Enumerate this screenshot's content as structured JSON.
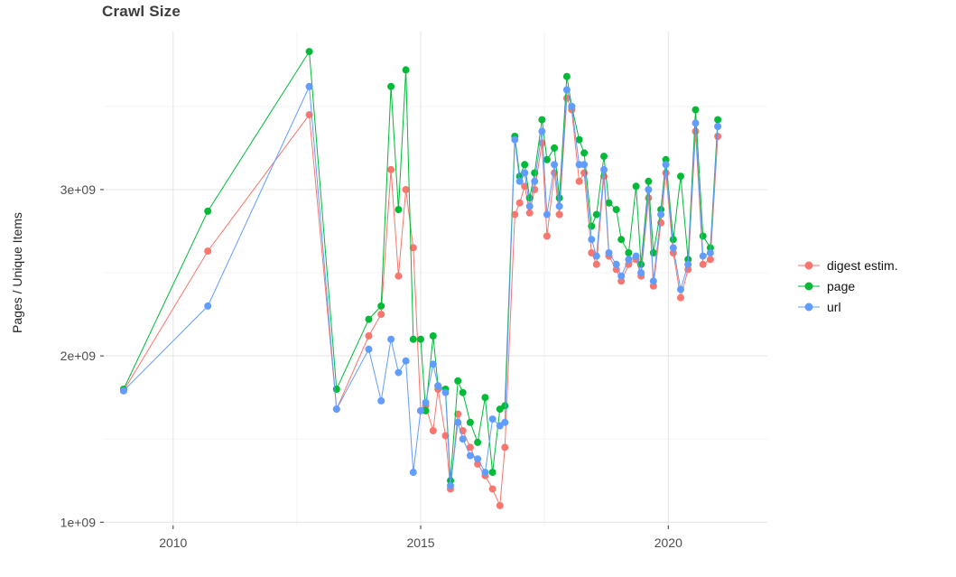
{
  "chart_data": {
    "type": "line",
    "title": "Crawl Size",
    "xlabel": "",
    "ylabel": "Pages / Unique Items",
    "legend_position": "right",
    "grid": true,
    "values_unit": "pages (values given in billions, i.e. 1e9)",
    "xlim": [
      2008.6,
      2022.0
    ],
    "ylim": [
      0.98,
      3.95
    ],
    "x_ticks": [
      2010,
      2015,
      2020
    ],
    "x_tick_labels": [
      "2010",
      "2015",
      "2020"
    ],
    "y_tick_values": [
      1,
      2,
      3
    ],
    "y_ticks": [
      "1e+09",
      "2e+09",
      "3e+09"
    ],
    "minor_x": [
      2012.5,
      2017.5
    ],
    "minor_y": [
      1.5,
      2.5,
      3.5
    ],
    "x": [
      2009.0,
      2010.7,
      2012.75,
      2013.3,
      2013.95,
      2014.2,
      2014.4,
      2014.55,
      2014.7,
      2014.85,
      2015.0,
      2015.1,
      2015.25,
      2015.35,
      2015.5,
      2015.6,
      2015.75,
      2015.85,
      2016.0,
      2016.15,
      2016.3,
      2016.45,
      2016.6,
      2016.7,
      2016.9,
      2017.0,
      2017.1,
      2017.2,
      2017.3,
      2017.45,
      2017.55,
      2017.7,
      2017.8,
      2017.95,
      2018.05,
      2018.2,
      2018.3,
      2018.45,
      2018.55,
      2018.7,
      2018.8,
      2018.95,
      2019.05,
      2019.2,
      2019.35,
      2019.45,
      2019.6,
      2019.7,
      2019.85,
      2019.95,
      2020.1,
      2020.25,
      2020.4,
      2020.55,
      2020.7,
      2020.85,
      2021.0
    ],
    "series": [
      {
        "name": "digest estim.",
        "color": "#F8766D",
        "values": [
          1.79,
          2.63,
          3.45,
          1.68,
          2.12,
          2.25,
          3.12,
          2.48,
          3.0,
          2.65,
          1.67,
          1.7,
          1.55,
          1.8,
          1.52,
          1.2,
          1.65,
          1.55,
          1.45,
          1.35,
          1.28,
          1.2,
          1.1,
          1.45,
          2.85,
          2.92,
          3.02,
          2.86,
          3.0,
          3.28,
          2.72,
          3.1,
          2.85,
          3.55,
          3.48,
          3.05,
          3.1,
          2.62,
          2.55,
          3.08,
          2.6,
          2.52,
          2.45,
          2.55,
          2.58,
          2.48,
          2.95,
          2.42,
          2.8,
          3.1,
          2.62,
          2.35,
          2.52,
          3.35,
          2.55,
          2.58,
          3.32
        ]
      },
      {
        "name": "page",
        "color": "#00BA38",
        "values": [
          1.8,
          2.87,
          3.83,
          1.8,
          2.22,
          2.3,
          3.62,
          2.88,
          3.72,
          2.1,
          2.1,
          1.67,
          2.12,
          1.82,
          1.8,
          1.25,
          1.85,
          1.78,
          1.6,
          1.48,
          1.75,
          1.3,
          1.68,
          1.7,
          3.32,
          3.08,
          3.15,
          2.95,
          3.1,
          3.42,
          3.18,
          3.25,
          2.95,
          3.68,
          3.5,
          3.3,
          3.22,
          2.78,
          2.85,
          3.2,
          2.92,
          2.88,
          2.7,
          2.62,
          3.02,
          2.55,
          3.05,
          2.62,
          2.88,
          3.18,
          2.7,
          3.08,
          2.58,
          3.48,
          2.72,
          2.65,
          3.42
        ]
      },
      {
        "name": "url",
        "color": "#619CFF",
        "values": [
          1.79,
          2.3,
          3.62,
          1.68,
          2.04,
          1.73,
          2.1,
          1.9,
          1.97,
          1.3,
          1.67,
          1.72,
          1.95,
          1.82,
          1.78,
          1.22,
          1.6,
          1.5,
          1.4,
          1.38,
          1.3,
          1.62,
          1.58,
          1.6,
          3.3,
          3.05,
          3.1,
          2.9,
          3.05,
          3.35,
          2.85,
          3.15,
          2.9,
          3.6,
          3.5,
          3.15,
          3.15,
          2.7,
          2.6,
          3.12,
          2.62,
          2.55,
          2.48,
          2.58,
          2.6,
          2.5,
          3.0,
          2.45,
          2.85,
          3.15,
          2.65,
          2.4,
          2.55,
          3.4,
          2.6,
          2.62,
          3.38
        ]
      }
    ]
  }
}
